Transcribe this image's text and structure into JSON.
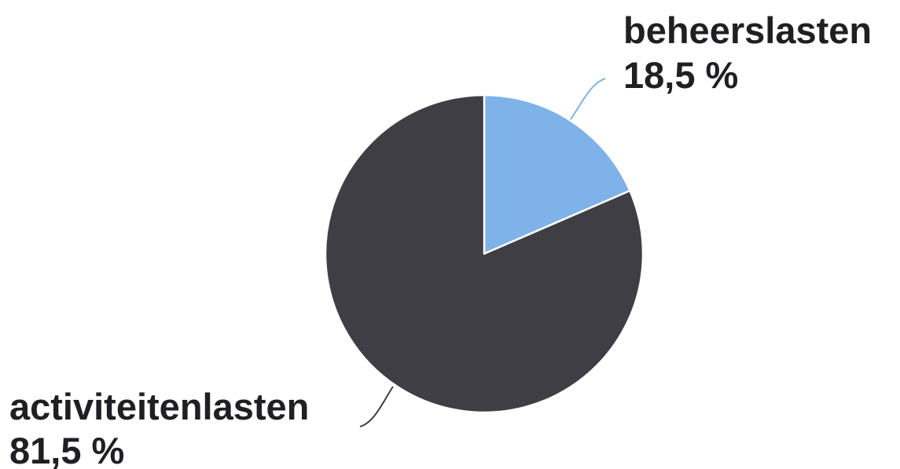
{
  "chart_data": {
    "type": "pie",
    "start_angle_deg": 0,
    "direction": "clockwise",
    "slices": [
      {
        "label": "beheerslasten",
        "value": 18.5,
        "value_label": "18,5 %",
        "color": "#7eb2e8"
      },
      {
        "label": "activiteitenlasten",
        "value": 81.5,
        "value_label": "81,5 %",
        "color": "#3f3e44"
      }
    ]
  },
  "colors": {
    "slice_edge": "#ffffff",
    "label_text": "#1f1f24",
    "leader_line_light": "#7eb2e8",
    "leader_line_dark": "#3f3e44"
  }
}
